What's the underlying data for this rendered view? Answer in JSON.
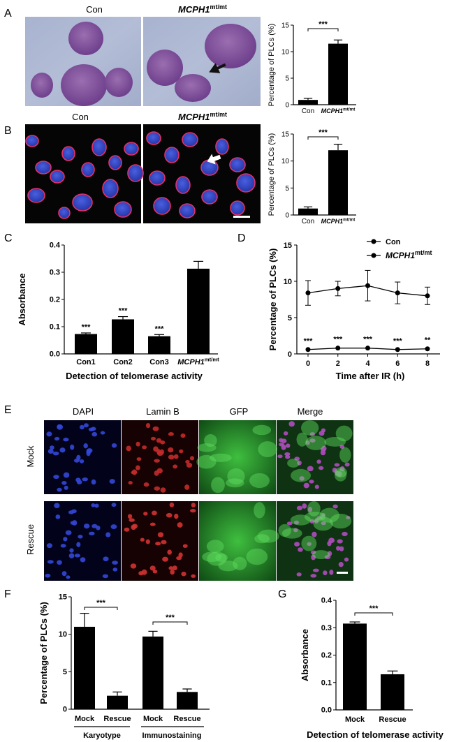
{
  "panel_labels": [
    "A",
    "B",
    "C",
    "D",
    "E",
    "F",
    "G"
  ],
  "panelA": {
    "con_label": "Con",
    "mut_gene": "MCPH1",
    "mut_sup": "mt/mt",
    "chart_ylabel": "Percentage of PLCs (%)",
    "sig": "***"
  },
  "panelB": {
    "con_label": "Con",
    "mut_gene": "MCPH1",
    "mut_sup": "mt/mt",
    "chart_ylabel": "Percentage of PLCs (%)",
    "sig": "***"
  },
  "panelE": {
    "col_titles": [
      "DAPI",
      "Lamin B",
      "GFP",
      "Merge"
    ],
    "row_titles": [
      "Mock",
      "Rescue"
    ]
  },
  "panelF": {
    "group_titles": [
      "Karyotype",
      "Immunostaining"
    ],
    "sig": [
      "***",
      "***"
    ]
  },
  "chart_data": [
    {
      "id": "A",
      "type": "bar",
      "categories": [
        "Con",
        "MCPH1mt/mt"
      ],
      "values": [
        0.9,
        11.5
      ],
      "errors": [
        0.3,
        0.7
      ],
      "ylabel": "Percentage of PLCs (%)",
      "ylim": [
        0,
        15
      ],
      "yticks": [
        0,
        5,
        10,
        15
      ],
      "annotations": [
        "***"
      ]
    },
    {
      "id": "B",
      "type": "bar",
      "categories": [
        "Con",
        "MCPH1mt/mt"
      ],
      "values": [
        1.2,
        12.0
      ],
      "errors": [
        0.3,
        1.1
      ],
      "ylabel": "Percentage of PLCs (%)",
      "ylim": [
        0,
        15
      ],
      "yticks": [
        0,
        5,
        10,
        15
      ],
      "annotations": [
        "***"
      ]
    },
    {
      "id": "C",
      "type": "bar",
      "categories": [
        "Con1",
        "Con2",
        "Con3",
        "MCPH1mt/mt"
      ],
      "values": [
        0.073,
        0.127,
        0.065,
        0.313
      ],
      "errors": [
        0.004,
        0.01,
        0.006,
        0.027
      ],
      "ylabel": "Absorbance",
      "xlabel": "Detection of telomerase activity",
      "ylim": [
        0,
        0.4
      ],
      "yticks": [
        0.0,
        0.1,
        0.2,
        0.3,
        0.4
      ],
      "annotations": [
        "***",
        "***",
        "***",
        ""
      ]
    },
    {
      "id": "D",
      "type": "line",
      "x": [
        0,
        2,
        4,
        6,
        8
      ],
      "series": [
        {
          "name": "Con",
          "values": [
            8.4,
            9.0,
            9.4,
            8.4,
            8.0
          ],
          "errors": [
            1.7,
            1.0,
            2.1,
            1.5,
            1.2
          ]
        },
        {
          "name": "MCPH1mt/mt",
          "values": [
            0.6,
            0.8,
            0.8,
            0.6,
            0.7
          ],
          "errors": [
            0.1,
            0.1,
            0.1,
            0.1,
            0.1
          ]
        }
      ],
      "ylabel": "Percentage of PLCs (%)",
      "xlabel": "Time after IR (h)",
      "ylim": [
        0,
        15
      ],
      "yticks": [
        0,
        5,
        10,
        15
      ],
      "xticks": [
        0,
        2,
        4,
        6,
        8
      ],
      "annotations": [
        "***",
        "***",
        "***",
        "***",
        "**"
      ],
      "legend": "top-right"
    },
    {
      "id": "F",
      "type": "bar",
      "categories": [
        "Mock",
        "Rescue",
        "Mock",
        "Rescue"
      ],
      "values": [
        11.0,
        1.8,
        9.7,
        2.3
      ],
      "errors": [
        1.8,
        0.5,
        0.7,
        0.4
      ],
      "ylabel": "Percentage of PLCs (%)",
      "ylim": [
        0,
        15
      ],
      "yticks": [
        0,
        5,
        10,
        15
      ]
    },
    {
      "id": "G",
      "type": "bar",
      "categories": [
        "Mock",
        "Rescue"
      ],
      "values": [
        0.315,
        0.13
      ],
      "errors": [
        0.006,
        0.012
      ],
      "ylabel": "Absorbance",
      "xlabel": "Detection of telomerase activity",
      "ylim": [
        0,
        0.4
      ],
      "yticks": [
        0.0,
        0.1,
        0.2,
        0.3,
        0.4
      ],
      "annotations": [
        "***"
      ]
    }
  ]
}
